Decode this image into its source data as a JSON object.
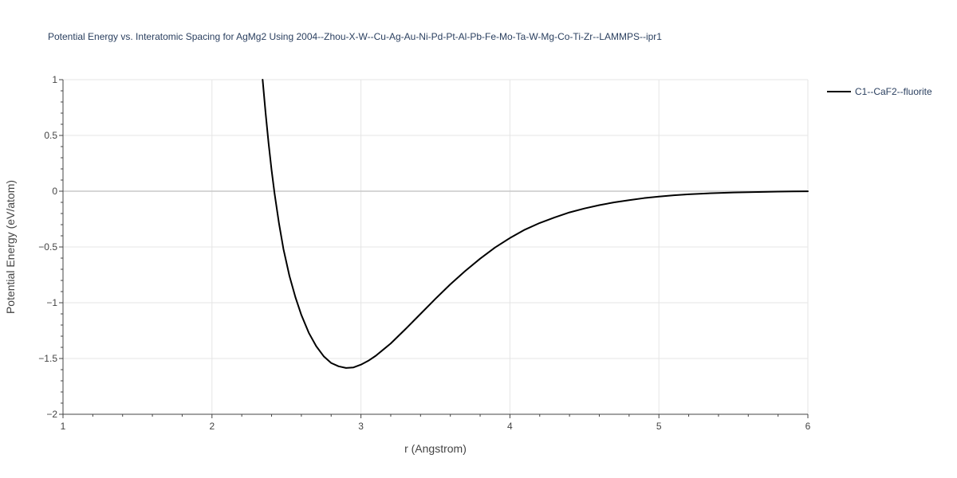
{
  "colors": {
    "background": "#ffffff",
    "grid": "#e5e5e5",
    "zeroline": "#c8c8c8",
    "axis_line": "#444444",
    "series": "#000000",
    "title": "#2a3f5f"
  },
  "chart_data": {
    "type": "line",
    "title": "Potential Energy vs. Interatomic Spacing for AgMg2 Using 2004--Zhou-X-W--Cu-Ag-Au-Ni-Pd-Pt-Al-Pb-Fe-Mo-Ta-W-Mg-Co-Ti-Zr--LAMMPS--ipr1",
    "xlabel": "r (Angstrom)",
    "ylabel": "Potential Energy (eV/atom)",
    "xlim": [
      1,
      6
    ],
    "ylim": [
      -2,
      1
    ],
    "x_ticks": [
      1,
      2,
      3,
      4,
      5,
      6
    ],
    "x_tick_labels": [
      "1",
      "2",
      "3",
      "4",
      "5",
      "6"
    ],
    "y_ticks": [
      1,
      0.5,
      0,
      -0.5,
      -1,
      -1.5,
      -2
    ],
    "y_tick_labels": [
      "1",
      "0.5",
      "0",
      "−0.5",
      "−1",
      "−1.5",
      "−2"
    ],
    "grid": true,
    "legend_position": "top-right outside",
    "series": [
      {
        "name": "C1--CaF2--fluorite",
        "color": "#000000",
        "x": [
          2.34,
          2.36,
          2.38,
          2.4,
          2.42,
          2.45,
          2.48,
          2.52,
          2.56,
          2.6,
          2.65,
          2.7,
          2.75,
          2.8,
          2.85,
          2.9,
          2.95,
          3.0,
          3.05,
          3.1,
          3.15,
          3.2,
          3.25,
          3.3,
          3.4,
          3.5,
          3.6,
          3.7,
          3.8,
          3.9,
          4.0,
          4.1,
          4.2,
          4.3,
          4.4,
          4.5,
          4.6,
          4.7,
          4.8,
          4.9,
          5.0,
          5.1,
          5.2,
          5.3,
          5.4,
          5.5,
          5.6,
          5.7,
          5.8,
          5.9,
          6.0
        ],
        "y": [
          1.0,
          0.7,
          0.43,
          0.19,
          -0.02,
          -0.29,
          -0.52,
          -0.76,
          -0.95,
          -1.11,
          -1.27,
          -1.39,
          -1.48,
          -1.54,
          -1.57,
          -1.585,
          -1.58,
          -1.555,
          -1.52,
          -1.475,
          -1.42,
          -1.365,
          -1.3,
          -1.235,
          -1.1,
          -0.965,
          -0.835,
          -0.715,
          -0.605,
          -0.505,
          -0.42,
          -0.345,
          -0.285,
          -0.235,
          -0.19,
          -0.155,
          -0.125,
          -0.1,
          -0.08,
          -0.062,
          -0.048,
          -0.037,
          -0.028,
          -0.021,
          -0.016,
          -0.012,
          -0.009,
          -0.006,
          -0.004,
          -0.002,
          -0.001
        ]
      }
    ]
  }
}
